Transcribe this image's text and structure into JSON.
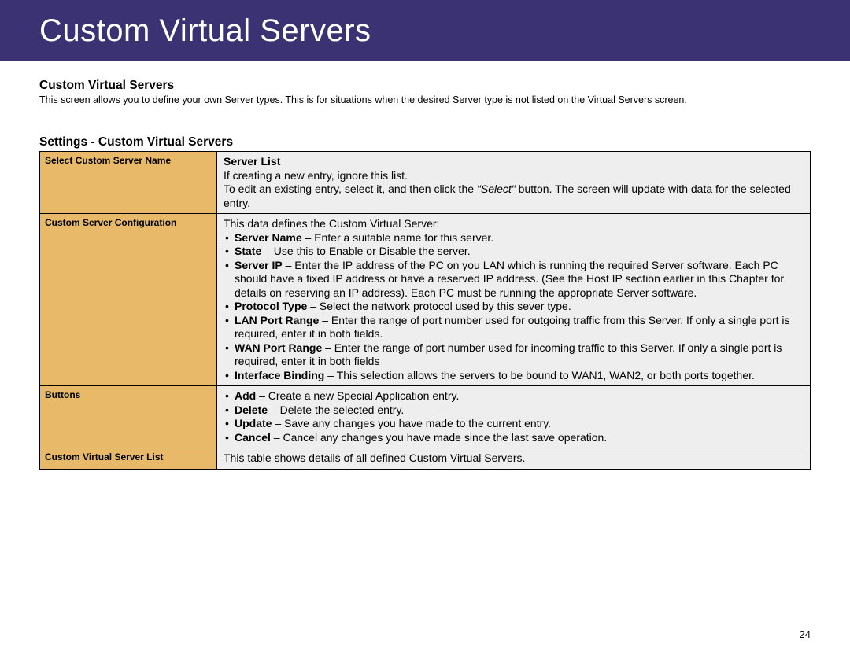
{
  "header": {
    "title": "Custom Virtual Servers"
  },
  "intro": {
    "title": "Custom Virtual Servers",
    "text": "This screen allows you to define your own Server types. This is for situations when the desired Server type is not listed on the Virtual Servers screen."
  },
  "settings": {
    "title": "Settings - Custom Virtual Servers",
    "rows": [
      {
        "label": "Select Custom Server Name",
        "subhead": "Server List",
        "line1": "If creating a new entry, ignore this list.",
        "line2_pre": "To edit an existing entry, select it, and then click the ",
        "line2_em": "\"Select\"",
        "line2_post": " button. The screen will update with data for the selected entry."
      },
      {
        "label": "Custom Server Configuration",
        "lead": "This data defines the Custom Virtual Server:",
        "items": [
          {
            "strong": "Server Name",
            "rest": " – Enter a suitable name for this server."
          },
          {
            "strong": "State",
            "rest": " – Use this to Enable or Disable the server."
          },
          {
            "strong": "Server IP",
            "rest": " – Enter the IP address of the PC on you LAN which is running the required Server software. Each PC should have a fixed IP address or have a reserved IP address. (See the Host IP section earlier in this Chapter for details on reserving an IP address). Each PC must be running the appropriate Server software."
          },
          {
            "strong": "Protocol Type",
            "rest": " – Select the network protocol used by this sever type."
          },
          {
            "strong": "LAN Port Range",
            "rest": " – Enter the range of port number used for outgoing traffic from this Server. If only a single port is required, enter it in both fields."
          },
          {
            "strong": "WAN Port Range",
            "rest": " – Enter the range of port number used for incoming traffic to this Server. If only a single port is required, enter it in both fields"
          },
          {
            "strong": "Interface Binding",
            "rest": " – This selection allows the servers to be bound to WAN1, WAN2, or both ports together."
          }
        ]
      },
      {
        "label": "Buttons",
        "items": [
          {
            "strong": "Add",
            "rest": " – Create a new Special Application entry."
          },
          {
            "strong": "Delete",
            "rest": " – Delete the selected entry."
          },
          {
            "strong": "Update",
            "rest": " – Save any changes you have made to the current entry."
          },
          {
            "strong": "Cancel",
            "rest": " – Cancel any changes you have made since the last save operation."
          }
        ]
      },
      {
        "label": "Custom Virtual Server List",
        "plain": "This table shows details of all defined Custom Virtual Servers."
      }
    ]
  },
  "page_number": "24",
  "colors": {
    "header_bg": "#3a3273",
    "header_text": "#ffffff",
    "label_bg": "#e8b968",
    "desc_bg": "#eeeeee",
    "border": "#000000",
    "body_bg": "#ffffff"
  }
}
